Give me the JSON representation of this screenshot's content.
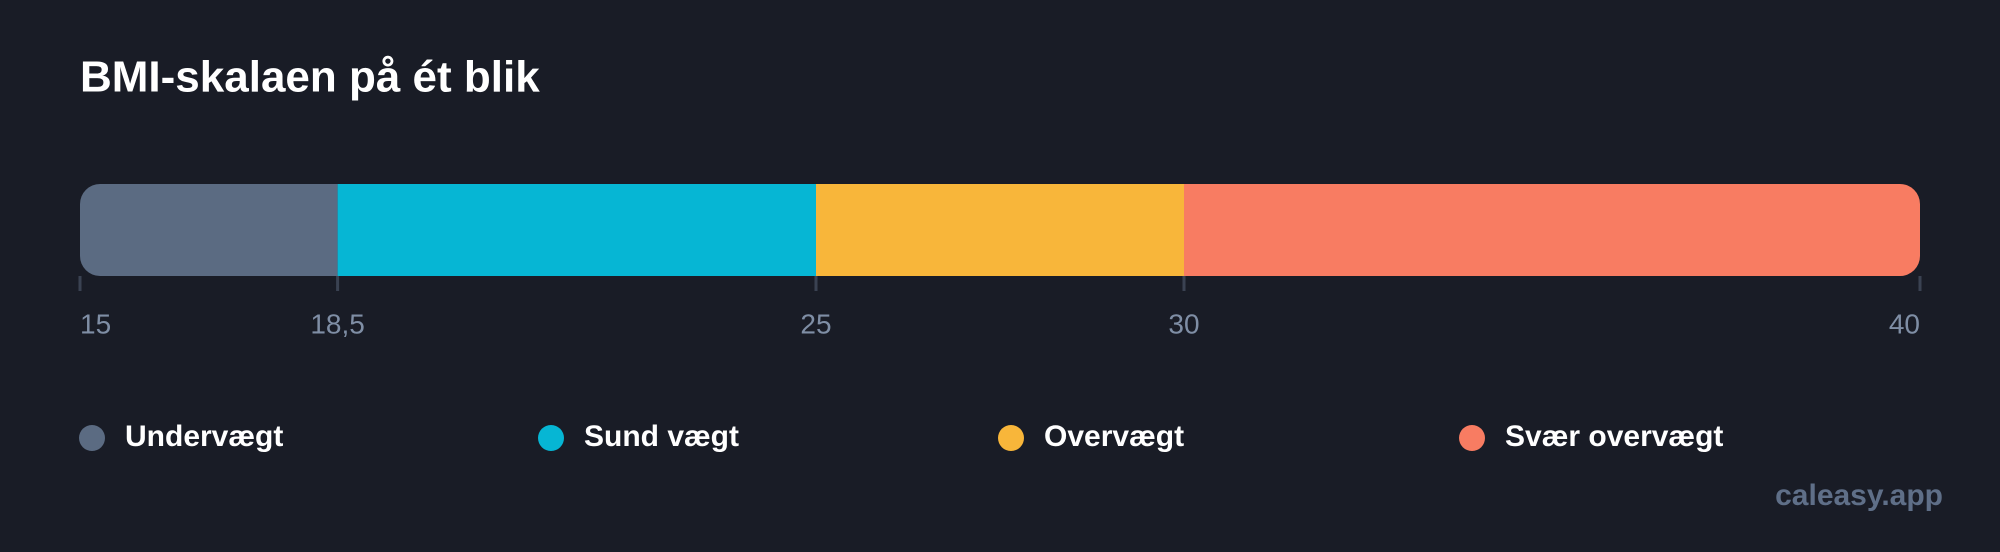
{
  "chart_data": {
    "type": "range-bar",
    "title": "BMI-skalaen på ét blik",
    "bins": [
      15,
      18.5,
      25,
      30,
      40
    ],
    "categories": [
      "Undervægt",
      "Sund vægt",
      "Overvægt",
      "Svær overvægt"
    ],
    "colors": [
      "#5b6b82",
      "#06b6d4",
      "#f8b63a",
      "#f87c62"
    ],
    "xlim": [
      15,
      40
    ],
    "xticks": [
      15,
      {
        "value": 18.5,
        "label": "18,5"
      },
      25,
      30,
      40
    ],
    "legend": "bottom"
  },
  "watermark": "caleasy.app"
}
